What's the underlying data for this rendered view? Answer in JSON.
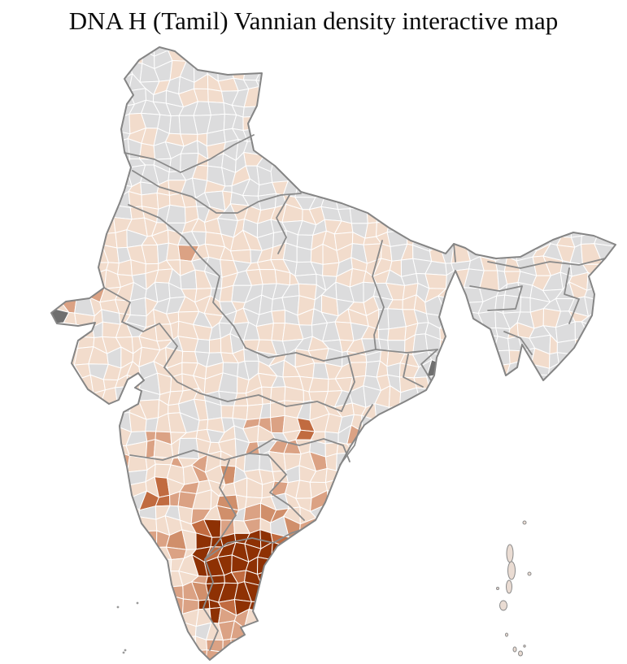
{
  "title": "DNA H (Tamil) Vannian density interactive map",
  "map": {
    "type": "choropleth",
    "subject": "DNA H (Tamil) Vannian density by district, India",
    "palette": {
      "no_data": "#dcdcdd",
      "very_low": "#f6ebe2",
      "low": "#f2dccc",
      "moderate": "#dba284",
      "high": "#d08f6b",
      "very_high": "#c16b40",
      "highest": "#8e3104",
      "special": "#6f6f6f",
      "district_border": "#ffffff",
      "state_border": "#8a8a8a",
      "country_border": "#858585",
      "island_fill": "#eadcd3",
      "island_dot": "#9a9a9a",
      "background": "#ffffff",
      "title_color": "#0a0a0a"
    },
    "legend_levels": [
      "no_data",
      "very_low",
      "low",
      "moderate",
      "high",
      "very_high",
      "highest"
    ],
    "regions": [
      {
        "id": "jammu_kashmir",
        "name": "Jammu & Kashmir / Ladakh",
        "level": "no_data"
      },
      {
        "id": "himachal",
        "name": "Himachal Pradesh & Uttarakhand",
        "level": "no_data"
      },
      {
        "id": "punjab",
        "name": "Punjab",
        "level": "very_low"
      },
      {
        "id": "haryana",
        "name": "Haryana",
        "level": "very_low"
      },
      {
        "id": "rajasthan",
        "name": "Rajasthan",
        "level": "low"
      },
      {
        "id": "gujarat",
        "name": "Gujarat",
        "level": "low"
      },
      {
        "id": "uttar_pradesh",
        "name": "Uttar Pradesh",
        "level": "very_low"
      },
      {
        "id": "bihar",
        "name": "Bihar",
        "level": "very_low"
      },
      {
        "id": "jharkhand",
        "name": "Jharkhand",
        "level": "very_low"
      },
      {
        "id": "west_bengal",
        "name": "West Bengal",
        "level": "very_low"
      },
      {
        "id": "northeast",
        "name": "North-East states",
        "level": "no_data"
      },
      {
        "id": "madhya_pradesh",
        "name": "Madhya Pradesh",
        "level": "low"
      },
      {
        "id": "chhattisgarh",
        "name": "Chhattisgarh",
        "level": "low"
      },
      {
        "id": "odisha",
        "name": "Odisha",
        "level": "low"
      },
      {
        "id": "maharashtra",
        "name": "Maharashtra",
        "level": "low"
      },
      {
        "id": "telangana",
        "name": "Telangana",
        "level": "low"
      },
      {
        "id": "andhra_pradesh",
        "name": "Andhra Pradesh",
        "level": "moderate"
      },
      {
        "id": "karnataka",
        "name": "Karnataka",
        "level": "moderate"
      },
      {
        "id": "kerala",
        "name": "Kerala",
        "level": "high"
      },
      {
        "id": "tamil_nadu",
        "name": "Tamil Nadu",
        "level": "highest"
      },
      {
        "id": "tamil_nadu_coastal_south",
        "name": "Tamil Nadu (south coastal belt)",
        "level": "fringe"
      },
      {
        "id": "andaman_nicobar",
        "name": "Andaman & Nicobar Islands",
        "level": "low"
      },
      {
        "id": "lakshadweep",
        "name": "Lakshadweep",
        "level": "low"
      }
    ]
  }
}
